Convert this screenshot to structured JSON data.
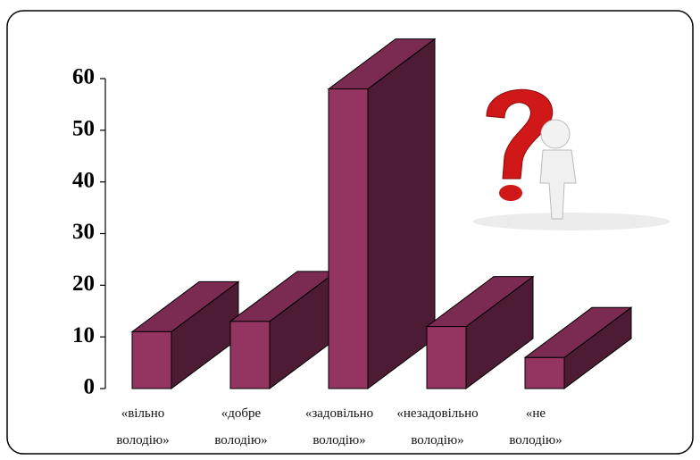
{
  "chart_data": {
    "type": "bar",
    "categories": [
      "«вільно володію»",
      "«добре володію»",
      "«задовільно володію»",
      "«незадовільно володію»",
      "«не володію»"
    ],
    "values": [
      11,
      13,
      58,
      12,
      6
    ],
    "color": "#943461",
    "ylim": [
      0,
      60
    ],
    "yticks": [
      0,
      10,
      20,
      30,
      40,
      50,
      60
    ]
  }
}
